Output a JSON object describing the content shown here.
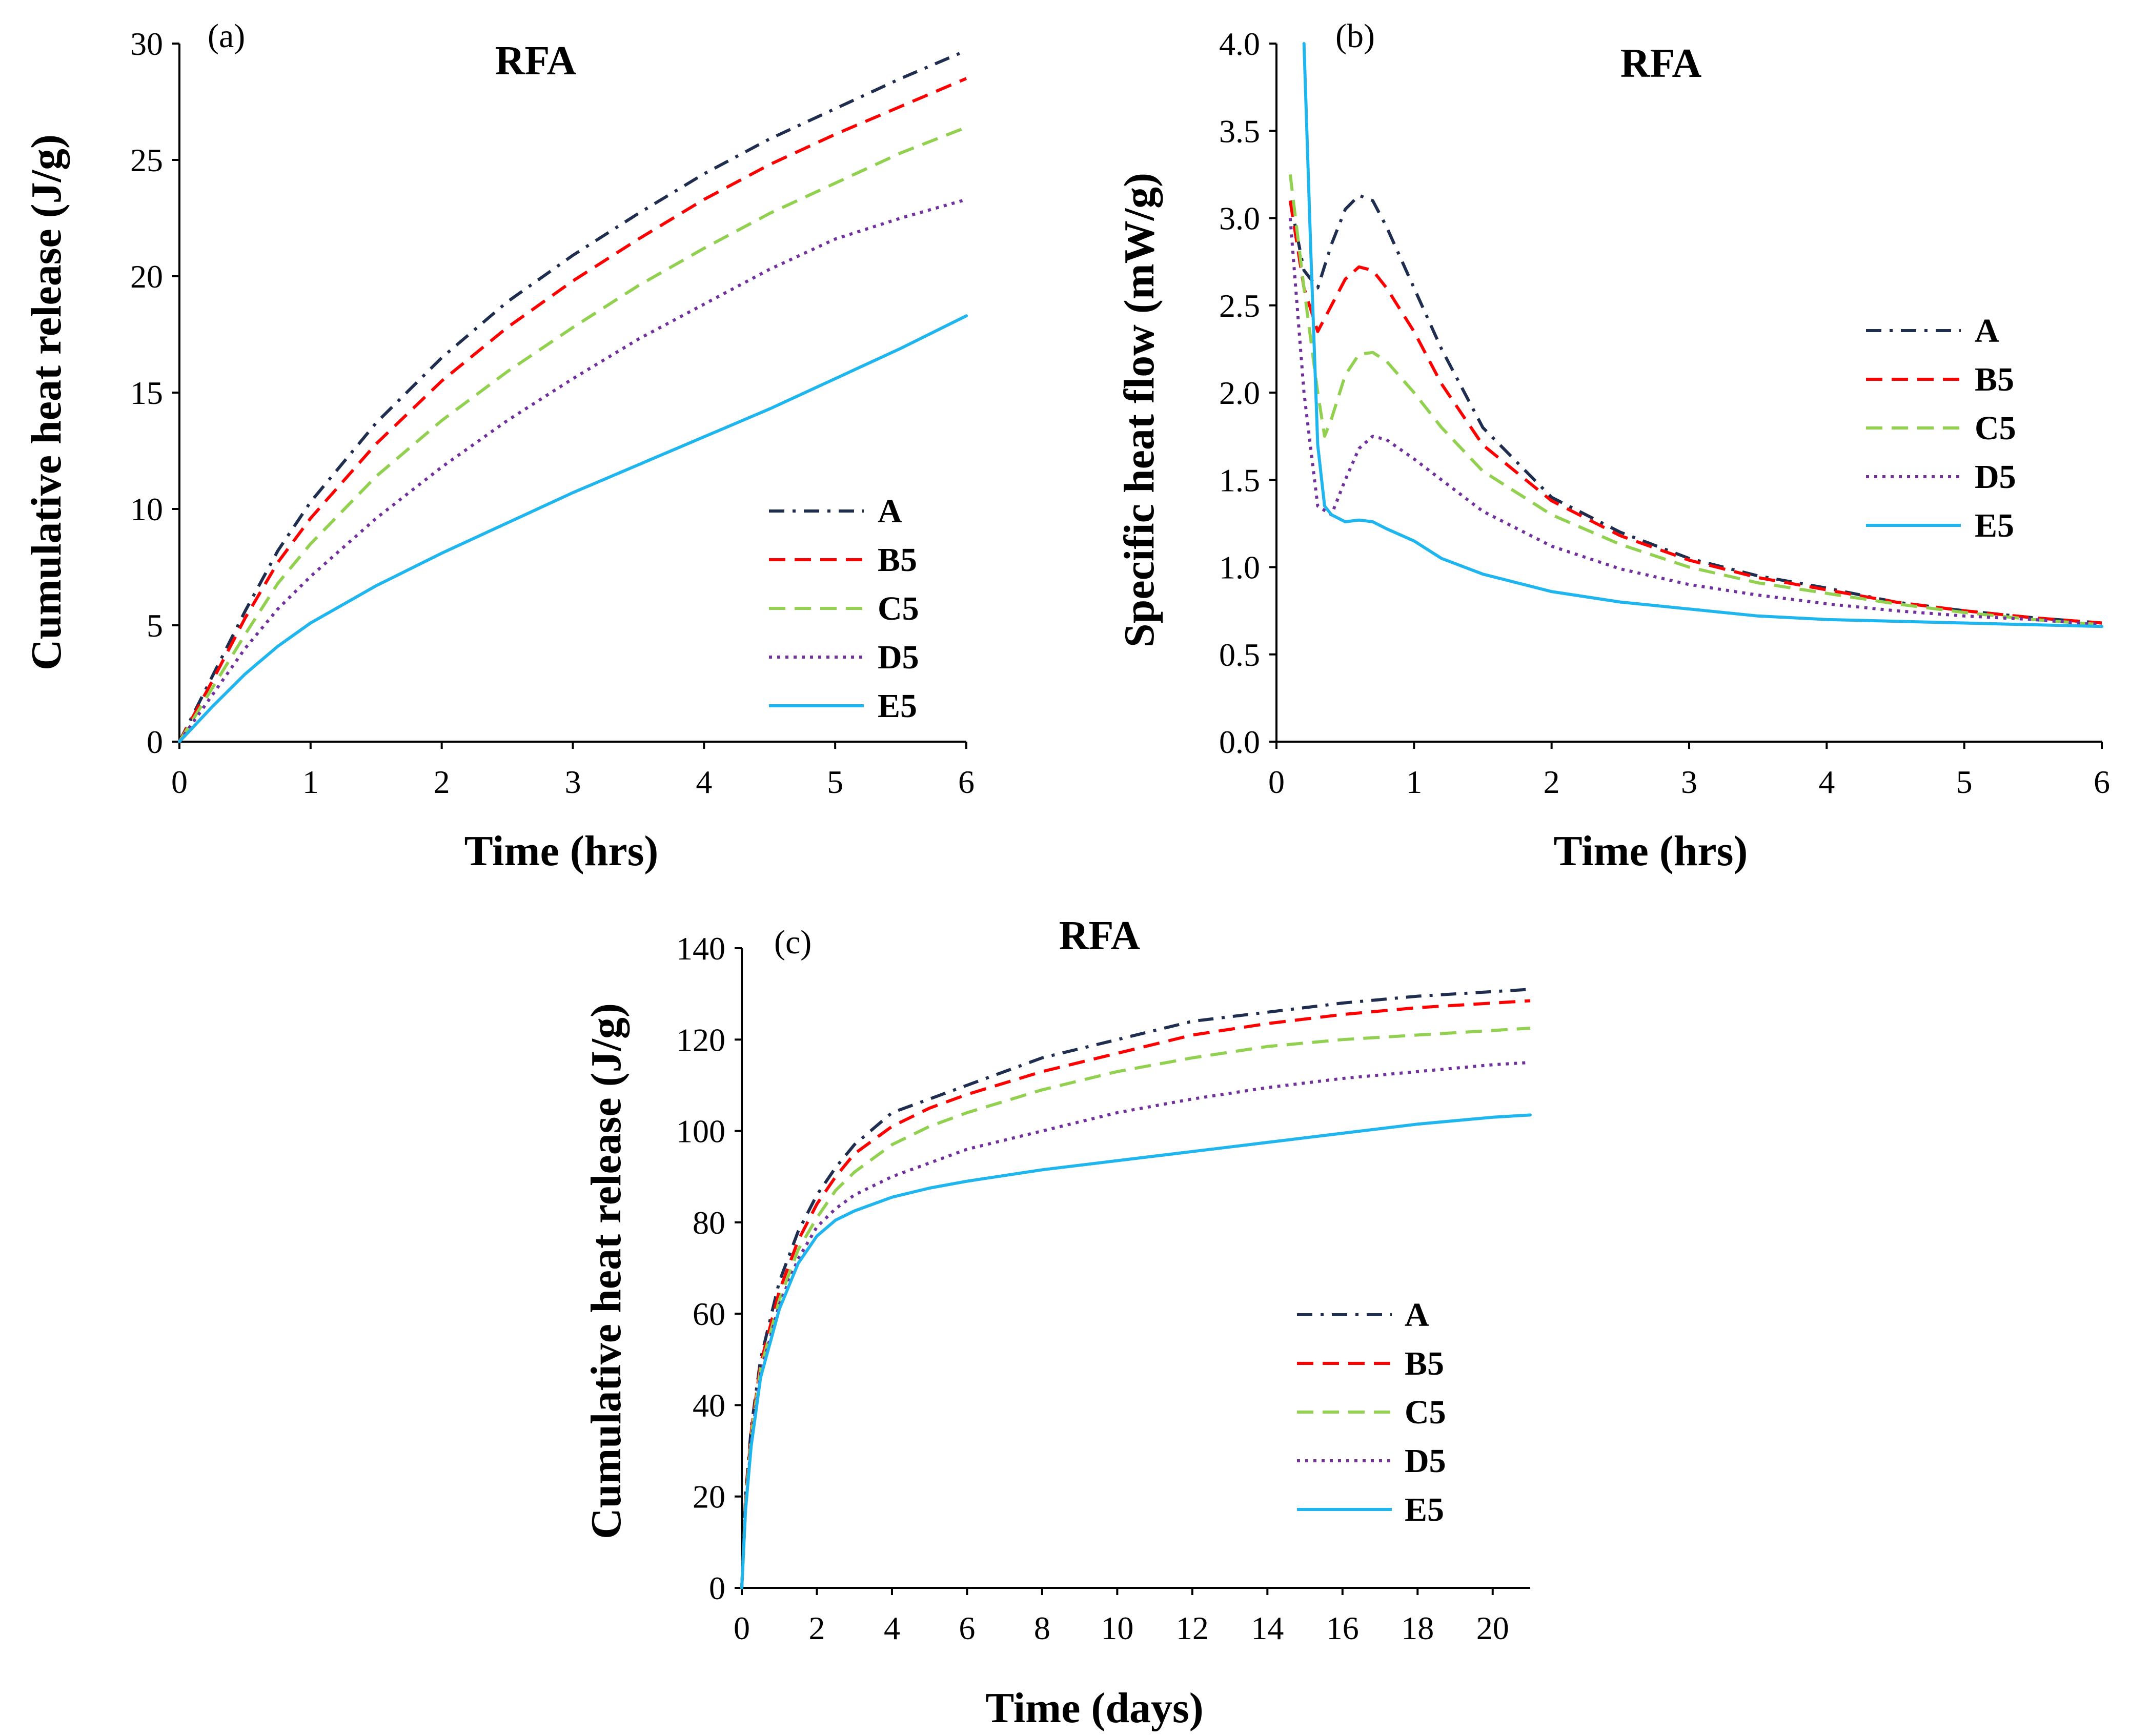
{
  "chart_data": [
    {
      "id": "a",
      "type": "line",
      "panel_label": "(a)",
      "title": "RFA",
      "xlabel": "Time (hrs)",
      "ylabel": "Cumulative heat release (J/g)",
      "xlim": [
        0,
        6
      ],
      "ylim": [
        0,
        30
      ],
      "xticks": [
        0,
        1,
        2,
        3,
        4,
        5,
        6
      ],
      "yticks": [
        0,
        5,
        10,
        15,
        20,
        25,
        30
      ],
      "grid": false,
      "legend_position": "bottom-right",
      "x": [
        0,
        0.25,
        0.5,
        0.75,
        1,
        1.5,
        2,
        2.5,
        3,
        3.5,
        4,
        4.5,
        5,
        5.5,
        6
      ],
      "series": [
        {
          "name": "A",
          "color": "#1f2d4f",
          "dash": "dashdot",
          "values": [
            0,
            2.8,
            5.6,
            8.2,
            10.3,
            13.7,
            16.5,
            18.9,
            20.9,
            22.7,
            24.4,
            25.9,
            27.2,
            28.5,
            29.7
          ]
        },
        {
          "name": "B5",
          "color": "#ff0000",
          "dash": "dash",
          "values": [
            0,
            2.6,
            5.3,
            7.7,
            9.6,
            12.8,
            15.5,
            17.8,
            19.8,
            21.6,
            23.3,
            24.8,
            26.1,
            27.3,
            28.5
          ]
        },
        {
          "name": "C5",
          "color": "#92d050",
          "dash": "dash",
          "values": [
            0,
            2.3,
            4.6,
            6.8,
            8.5,
            11.4,
            13.8,
            15.9,
            17.8,
            19.6,
            21.2,
            22.7,
            24.0,
            25.3,
            26.4
          ]
        },
        {
          "name": "D5",
          "color": "#7030a0",
          "dash": "dot",
          "values": [
            0,
            2.0,
            4.0,
            5.7,
            7.1,
            9.6,
            11.8,
            13.8,
            15.6,
            17.3,
            18.8,
            20.3,
            21.6,
            22.5,
            23.3
          ]
        },
        {
          "name": "E5",
          "color": "#1fb5ef",
          "dash": "solid",
          "values": [
            0,
            1.5,
            2.9,
            4.1,
            5.1,
            6.7,
            8.1,
            9.4,
            10.7,
            11.9,
            13.1,
            14.3,
            15.6,
            16.9,
            18.3
          ]
        }
      ]
    },
    {
      "id": "b",
      "type": "line",
      "panel_label": "(b)",
      "title": "RFA",
      "xlabel": "Time (hrs)",
      "ylabel": "Specific heat flow (mW/g)",
      "xlim": [
        0,
        6
      ],
      "ylim": [
        0,
        4
      ],
      "xticks": [
        0,
        1,
        2,
        3,
        4,
        5,
        6
      ],
      "yticks": [
        "0.0",
        "0.5",
        "1.0",
        "1.5",
        "2.0",
        "2.5",
        "3.0",
        "3.5",
        "4.0"
      ],
      "grid": false,
      "legend_position": "right",
      "series": [
        {
          "name": "A",
          "color": "#1f2d4f",
          "dash": "dashdot",
          "x": [
            0.1,
            0.2,
            0.3,
            0.4,
            0.5,
            0.6,
            0.7,
            0.8,
            1.0,
            1.2,
            1.5,
            2.0,
            2.5,
            3.0,
            3.5,
            4.0,
            4.5,
            5.0,
            5.5,
            6.0
          ],
          "values": [
            3.1,
            2.7,
            2.6,
            2.85,
            3.05,
            3.13,
            3.1,
            2.95,
            2.6,
            2.25,
            1.8,
            1.4,
            1.2,
            1.05,
            0.95,
            0.88,
            0.8,
            0.75,
            0.71,
            0.68
          ]
        },
        {
          "name": "B5",
          "color": "#ff0000",
          "dash": "dash",
          "x": [
            0.1,
            0.2,
            0.3,
            0.4,
            0.5,
            0.6,
            0.7,
            0.8,
            1.0,
            1.2,
            1.5,
            2.0,
            2.5,
            3.0,
            3.5,
            4.0,
            4.5,
            5.0,
            5.5,
            6.0
          ],
          "values": [
            3.1,
            2.6,
            2.35,
            2.5,
            2.65,
            2.72,
            2.7,
            2.6,
            2.35,
            2.05,
            1.7,
            1.38,
            1.18,
            1.04,
            0.94,
            0.87,
            0.8,
            0.75,
            0.71,
            0.68
          ]
        },
        {
          "name": "C5",
          "color": "#92d050",
          "dash": "dash",
          "x": [
            0.1,
            0.2,
            0.3,
            0.35,
            0.4,
            0.5,
            0.6,
            0.7,
            0.8,
            1.0,
            1.2,
            1.5,
            2.0,
            2.5,
            3.0,
            3.5,
            4.0,
            4.5,
            5.0,
            5.5,
            6.0
          ],
          "values": [
            3.25,
            2.6,
            2.0,
            1.75,
            1.85,
            2.1,
            2.22,
            2.23,
            2.18,
            2.0,
            1.8,
            1.55,
            1.3,
            1.13,
            1.0,
            0.91,
            0.85,
            0.79,
            0.74,
            0.7,
            0.67
          ]
        },
        {
          "name": "D5",
          "color": "#7030a0",
          "dash": "dot",
          "x": [
            0.1,
            0.2,
            0.3,
            0.4,
            0.5,
            0.6,
            0.7,
            0.8,
            1.0,
            1.2,
            1.5,
            2.0,
            2.5,
            3.0,
            3.5,
            4.0,
            4.5,
            5.0,
            5.5,
            6.0
          ],
          "values": [
            3.0,
            2.0,
            1.35,
            1.3,
            1.5,
            1.68,
            1.75,
            1.73,
            1.62,
            1.5,
            1.32,
            1.12,
            0.99,
            0.9,
            0.84,
            0.79,
            0.75,
            0.72,
            0.7,
            0.67
          ]
        },
        {
          "name": "E5",
          "color": "#1fb5ef",
          "dash": "solid",
          "x": [
            0.2,
            0.25,
            0.3,
            0.35,
            0.4,
            0.45,
            0.5,
            0.6,
            0.7,
            0.8,
            1.0,
            1.2,
            1.5,
            2.0,
            2.5,
            3.0,
            3.5,
            4.0,
            4.5,
            5.0,
            5.5,
            6.0
          ],
          "values": [
            4.0,
            2.8,
            1.7,
            1.35,
            1.3,
            1.28,
            1.26,
            1.27,
            1.26,
            1.22,
            1.15,
            1.05,
            0.96,
            0.86,
            0.8,
            0.76,
            0.72,
            0.7,
            0.69,
            0.68,
            0.67,
            0.66
          ]
        }
      ]
    },
    {
      "id": "c",
      "type": "line",
      "panel_label": "(c)",
      "title": "RFA",
      "xlabel": "Time (days)",
      "ylabel": "Cumulative heat release (J/g)",
      "xlim": [
        0,
        21
      ],
      "ylim": [
        0,
        140
      ],
      "xticks": [
        0,
        2,
        4,
        6,
        8,
        10,
        12,
        14,
        16,
        18,
        20
      ],
      "yticks": [
        0,
        20,
        40,
        60,
        80,
        100,
        120,
        140
      ],
      "grid": false,
      "legend_position": "bottom-right",
      "x": [
        0,
        0.1,
        0.25,
        0.5,
        1,
        1.5,
        2,
        2.5,
        3,
        4,
        5,
        6,
        8,
        10,
        12,
        14,
        16,
        18,
        20,
        21
      ],
      "series": [
        {
          "name": "A",
          "color": "#1f2d4f",
          "dash": "dashdot",
          "values": [
            0,
            20,
            35,
            50,
            67,
            78,
            86,
            92,
            97,
            104,
            107,
            110,
            116,
            120,
            124,
            126,
            128,
            129.5,
            130.5,
            131
          ]
        },
        {
          "name": "B5",
          "color": "#ff0000",
          "dash": "dash",
          "values": [
            0,
            19,
            34,
            49,
            65,
            76,
            84,
            90,
            95,
            101,
            105,
            108,
            113,
            117,
            121,
            123.5,
            125.5,
            127,
            128,
            128.5
          ]
        },
        {
          "name": "C5",
          "color": "#92d050",
          "dash": "dash",
          "values": [
            0,
            18,
            33,
            48,
            63,
            74,
            81,
            87,
            91,
            97,
            101,
            104,
            109,
            113,
            116,
            118.5,
            120,
            121,
            122,
            122.5
          ]
        },
        {
          "name": "D5",
          "color": "#7030a0",
          "dash": "dot",
          "values": [
            0,
            17,
            32,
            47,
            62,
            72,
            79,
            83,
            86,
            90,
            93,
            96,
            100,
            104,
            107,
            109.5,
            111.5,
            113,
            114.5,
            115
          ]
        },
        {
          "name": "E5",
          "color": "#1fb5ef",
          "dash": "solid",
          "values": [
            0,
            17,
            31,
            46,
            61,
            71,
            77,
            80.5,
            82.5,
            85.5,
            87.5,
            89,
            91.5,
            93.5,
            95.5,
            97.5,
            99.5,
            101.5,
            103,
            103.5
          ]
        }
      ]
    }
  ]
}
